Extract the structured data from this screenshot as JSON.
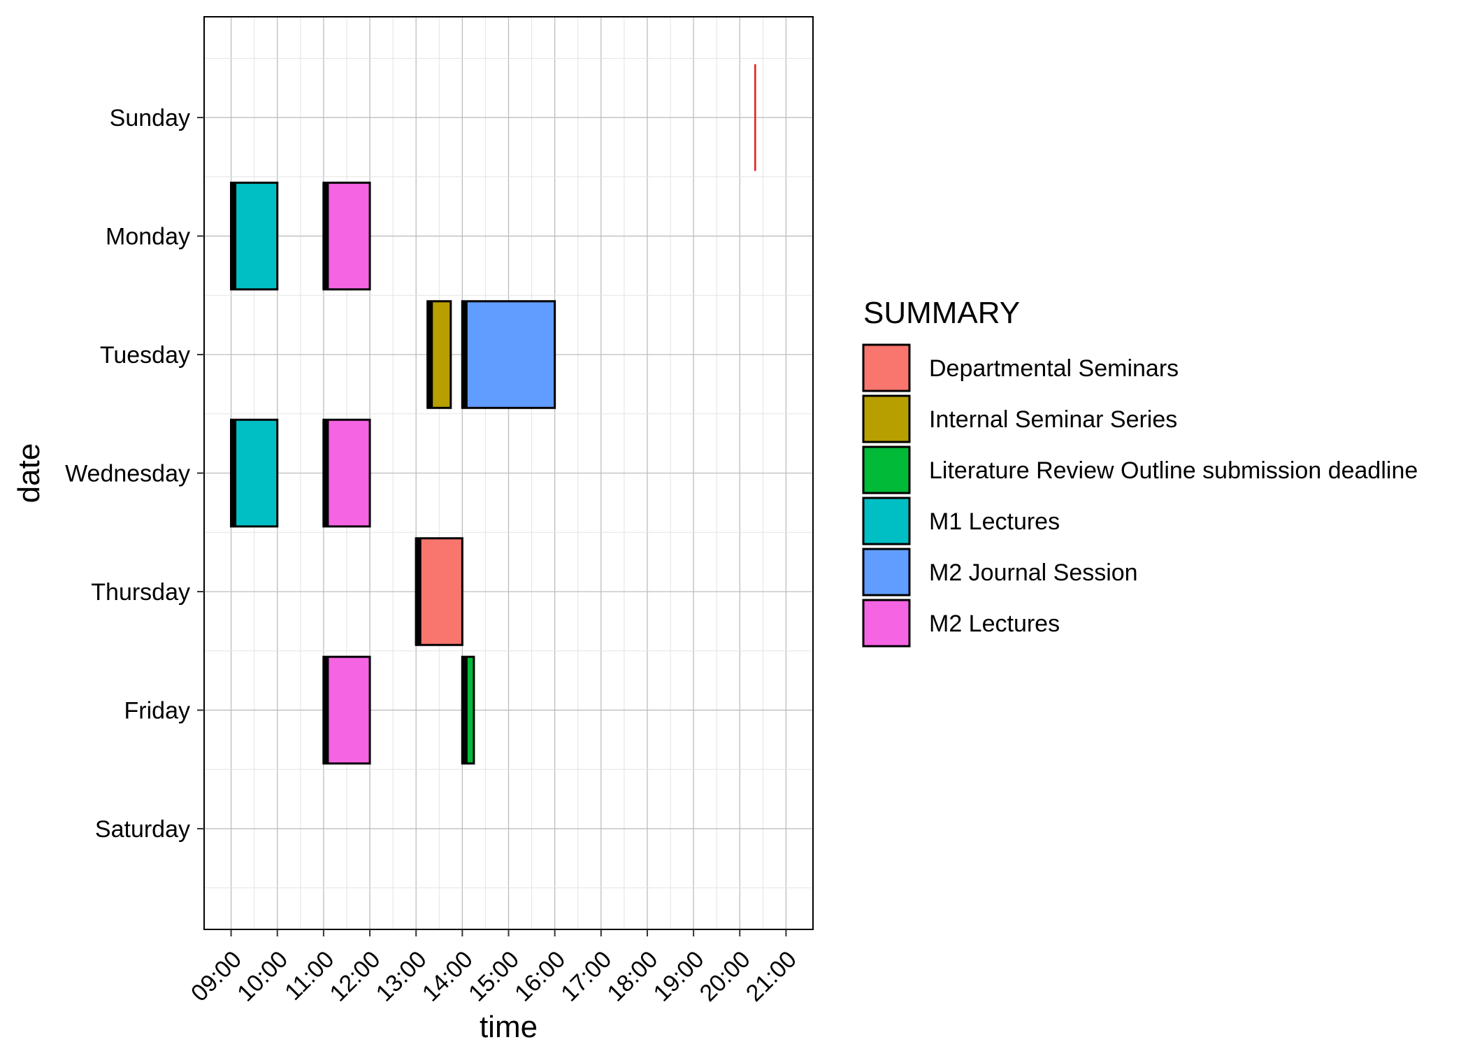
{
  "chart_data": {
    "type": "gantt",
    "xlabel": "time",
    "ylabel": "date",
    "x_ticks": [
      "09:00",
      "10:00",
      "11:00",
      "12:00",
      "13:00",
      "14:00",
      "15:00",
      "16:00",
      "17:00",
      "18:00",
      "19:00",
      "20:00",
      "21:00"
    ],
    "x_range": [
      "08:25",
      "21:35"
    ],
    "y_categories": [
      "Sunday",
      "Monday",
      "Tuesday",
      "Wednesday",
      "Thursday",
      "Friday",
      "Saturday"
    ],
    "grid": true,
    "legend": {
      "title": "SUMMARY",
      "position": "right",
      "entries": [
        {
          "label": "Departmental Seminars",
          "color": "#F8766D"
        },
        {
          "label": "Internal Seminar Series",
          "color": "#B79F00"
        },
        {
          "label": "Literature Review Outline submission deadline",
          "color": "#00BA38"
        },
        {
          "label": "M1 Lectures",
          "color": "#00BFC4"
        },
        {
          "label": "M2 Journal Session",
          "color": "#619CFF"
        },
        {
          "label": "M2 Lectures",
          "color": "#F564E3"
        }
      ]
    },
    "events": [
      {
        "day": "Monday",
        "start": "09:00",
        "end": "10:00",
        "summary": "M1 Lectures"
      },
      {
        "day": "Monday",
        "start": "11:00",
        "end": "12:00",
        "summary": "M2 Lectures"
      },
      {
        "day": "Tuesday",
        "start": "13:15",
        "end": "13:45",
        "summary": "Internal Seminar Series"
      },
      {
        "day": "Tuesday",
        "start": "14:00",
        "end": "16:00",
        "summary": "M2 Journal Session"
      },
      {
        "day": "Wednesday",
        "start": "09:00",
        "end": "10:00",
        "summary": "M1 Lectures"
      },
      {
        "day": "Wednesday",
        "start": "11:00",
        "end": "12:00",
        "summary": "M2 Lectures"
      },
      {
        "day": "Thursday",
        "start": "13:00",
        "end": "14:00",
        "summary": "Departmental Seminars"
      },
      {
        "day": "Friday",
        "start": "11:00",
        "end": "12:00",
        "summary": "M2 Lectures"
      },
      {
        "day": "Friday",
        "start": "14:00",
        "end": "14:15",
        "summary": "Literature Review Outline submission deadline"
      }
    ],
    "current_time_marker": {
      "day": "Sunday",
      "time": "20:20",
      "color": "#E41A1C"
    }
  }
}
